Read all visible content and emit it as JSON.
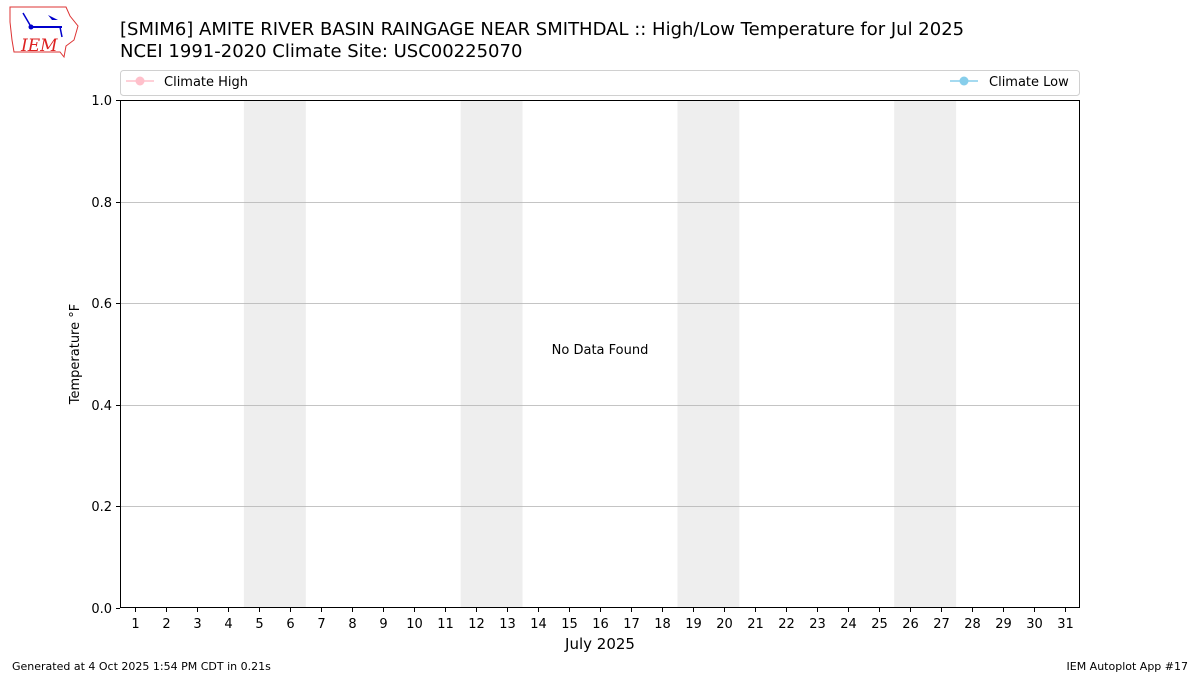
{
  "logo": {
    "text": "IEM"
  },
  "title_line1": "[SMIM6] AMITE RIVER BASIN RAINGAGE NEAR SMITHDAL :: High/Low Temperature for Jul 2025",
  "title_line2": "NCEI 1991-2020 Climate Site: USC00225070",
  "footer_left": "Generated at 4 Oct 2025 1:54 PM CDT in 0.21s",
  "footer_right": "IEM Autoplot App #17",
  "chart_data": {
    "type": "line",
    "xlabel": "July 2025",
    "ylabel": "Temperature °F",
    "xlim": [
      0.5,
      31.5
    ],
    "ylim": [
      0,
      1
    ],
    "x_ticks": [
      1,
      2,
      3,
      4,
      5,
      6,
      7,
      8,
      9,
      10,
      11,
      12,
      13,
      14,
      15,
      16,
      17,
      18,
      19,
      20,
      21,
      22,
      23,
      24,
      25,
      26,
      27,
      28,
      29,
      30,
      31
    ],
    "y_ticks": [
      "0.0",
      "0.2",
      "0.4",
      "0.6",
      "0.8",
      "1.0"
    ],
    "grid": "horizontal",
    "weekend_shading": [
      [
        4.5,
        6.5
      ],
      [
        11.5,
        13.5
      ],
      [
        18.5,
        20.5
      ],
      [
        25.5,
        27.5
      ]
    ],
    "shading_color": "#eeeeee",
    "annotation": "No Data Found",
    "legend_placement": "top",
    "series": [
      {
        "name": "Climate High",
        "color": "#ffc0cb",
        "values": []
      },
      {
        "name": "Climate Low",
        "color": "#87ceeb",
        "values": []
      }
    ]
  }
}
